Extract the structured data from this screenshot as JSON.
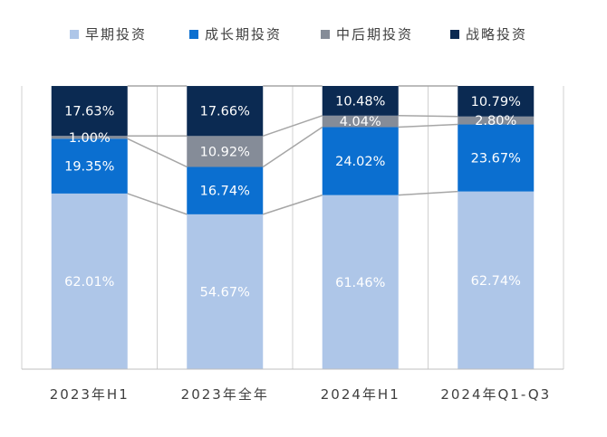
{
  "chart_data": {
    "type": "bar",
    "stacked": true,
    "normalized": true,
    "unit": "%",
    "categories": [
      "2023年H1",
      "2023年全年",
      "2024年H1",
      "2024年Q1-Q3"
    ],
    "series": [
      {
        "name": "早期投资",
        "values": [
          62.01,
          54.67,
          61.46,
          62.74
        ],
        "color": "#aec6e8",
        "label_color": "#ffffff"
      },
      {
        "name": "成长期投资",
        "values": [
          19.35,
          16.74,
          24.02,
          23.67
        ],
        "color": "#0b6fd0",
        "label_color": "#ffffff"
      },
      {
        "name": "中后期投资",
        "values": [
          1.0,
          10.92,
          4.04,
          2.8
        ],
        "color": "#858c98",
        "label_color": "#ffffff"
      },
      {
        "name": "战略投资",
        "values": [
          17.63,
          17.66,
          10.48,
          10.79
        ],
        "color": "#0b2a52",
        "label_color": "#ffffff"
      }
    ],
    "labels": [
      [
        "62.01%",
        "54.67%",
        "61.46%",
        "62.74%"
      ],
      [
        "19.35%",
        "16.74%",
        "24.02%",
        "23.67%"
      ],
      [
        "1.00%",
        "10.92%",
        "4.04%",
        "2.80%"
      ],
      [
        "17.63%",
        "17.66%",
        "10.48%",
        "10.79%"
      ]
    ],
    "ylim": [
      0,
      100
    ],
    "legend_position": "top",
    "connector_lines": true,
    "grid": false
  }
}
